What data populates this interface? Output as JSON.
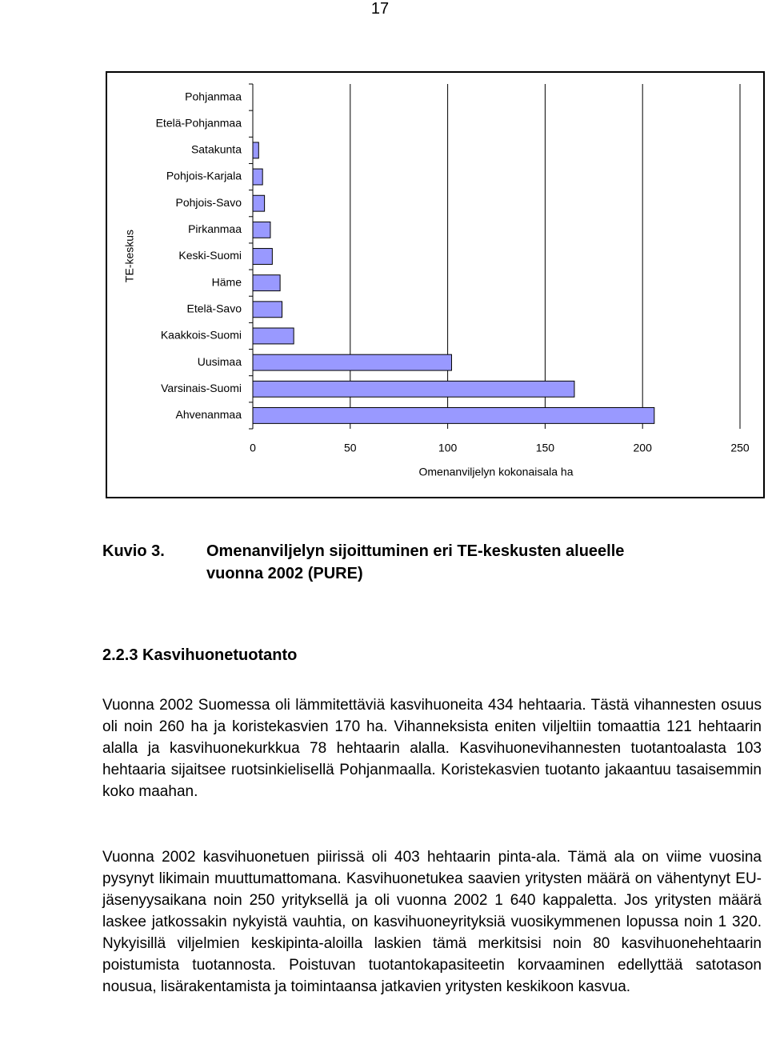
{
  "page_number": "17",
  "chart_data": {
    "type": "bar",
    "orientation": "horizontal",
    "x_label": "Omenanviljelyn kokonaisala ha",
    "y_label": "TE-keskus",
    "categories": [
      "Pohjanmaa",
      "Etelä-Pohjanmaa",
      "Satakunta",
      "Pohjois-Karjala",
      "Pohjois-Savo",
      "Pirkanmaa",
      "Keski-Suomi",
      "Häme",
      "Etelä-Savo",
      "Kaakkois-Suomi",
      "Uusimaa",
      "Varsinais-Suomi",
      "Ahvenanmaa"
    ],
    "values": [
      0,
      0,
      3,
      5,
      6,
      9,
      10,
      14,
      15,
      21,
      102,
      165,
      206
    ],
    "color": "#9999ff",
    "xlim": [
      0,
      250
    ],
    "xticks": [
      0,
      50,
      100,
      150,
      200,
      250
    ],
    "grid": true
  },
  "caption": {
    "label": "Kuvio 3.",
    "lines": [
      "Omenanviljelyn sijoittuminen eri TE-keskusten alueelle",
      "vuonna 2002 (PURE)"
    ]
  },
  "section": {
    "heading": "2.2.3 Kasvihuonetuotanto",
    "paragraphs": [
      "Vuonna 2002 Suomessa oli lämmitettäviä kasvihuoneita 434 hehtaaria. Tästä vihannesten osuus oli noin 260 ha ja koristekasvien 170 ha. Vihanneksista eniten viljeltiin tomaattia 121 hehtaarin alalla ja kasvihuonekurkkua 78 hehtaarin alalla. Kasvihuonevihannesten tuotantoalasta 103 hehtaaria sijaitsee ruotsinkielisellä Pohjanmaalla. Koristekasvien tuotanto jakaantuu tasaisemmin koko maahan.",
      "Vuonna 2002 kasvihuonetuen piirissä oli 403 hehtaarin pinta-ala. Tämä ala on viime vuosina pysynyt likimain muuttumattomana. Kasvihuonetukea saavien yritysten määrä on vähentynyt EU-jäsenyysaikana noin 250 yrityksellä ja oli vuonna 2002 1 640 kappaletta. Jos yritysten määrä laskee jatkossakin nykyistä vauhtia, on kasvihuoneyrityksiä vuosikymmenen lopussa noin 1 320. Nykyisillä viljelmien keskipinta-aloilla laskien tämä merkitsisi noin 80 kasvihuonehehtaarin poistumista tuotannosta. Poistuvan tuotantokapasiteetin korvaaminen edellyttää satotason nousua, lisärakentamista ja toimintaansa jatkavien yritysten keskikoon kasvua."
    ]
  }
}
